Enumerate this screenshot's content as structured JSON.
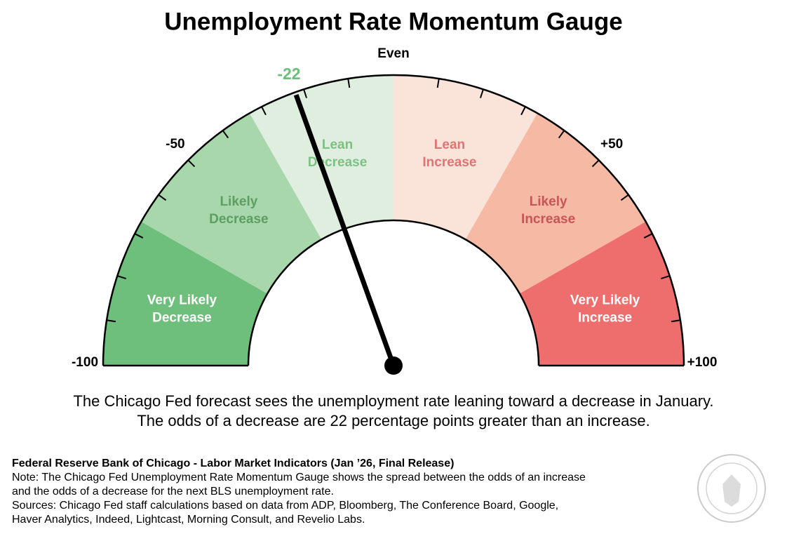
{
  "chart_data": {
    "type": "gauge",
    "title": "Unemployment Rate Momentum Gauge",
    "value": -22,
    "value_color": "#6cbf7a",
    "needle_color": "#000000",
    "range": [
      -100,
      100
    ],
    "bands": [
      {
        "name": [
          "Very Likely",
          "Decrease"
        ],
        "from": -100,
        "to": -67,
        "color": "#6dbf7b",
        "text_color": "#ffffff"
      },
      {
        "name": [
          "Likely",
          "Decrease"
        ],
        "from": -67,
        "to": -33,
        "color": "#a8d7ab",
        "text_color": "#5c9e63"
      },
      {
        "name": [
          "Lean",
          "Decrease"
        ],
        "from": -33,
        "to": 0,
        "color": "#e0eee0",
        "text_color": "#7cc184"
      },
      {
        "name": [
          "Lean",
          "Increase"
        ],
        "from": 0,
        "to": 33,
        "color": "#fae3d8",
        "text_color": "#e07474"
      },
      {
        "name": [
          "Likely",
          "Increase"
        ],
        "from": 33,
        "to": 67,
        "color": "#f6b9a3",
        "text_color": "#c65656"
      },
      {
        "name": [
          "Very Likely",
          "Increase"
        ],
        "from": 67,
        "to": 100,
        "color": "#ee6d6d",
        "text_color": "#ffffff"
      }
    ],
    "ticks": [
      -90,
      -80,
      -70,
      -60,
      -50,
      -40,
      -30,
      -20,
      -10,
      10,
      20,
      30,
      40,
      50,
      60,
      70,
      80,
      90
    ],
    "tick_labels": [
      -100,
      -50,
      {
        "value": 0,
        "label": "Even"
      },
      {
        "value": 50,
        "label": "+50"
      },
      {
        "value": 100,
        "label": "+100"
      }
    ],
    "caption": [
      "The Chicago Fed forecast sees the unemployment rate leaning toward a decrease in January.",
      "The odds of a decrease are 22 percentage points greater than an increase."
    ],
    "source_title": "Federal Reserve Bank of Chicago - Labor Market Indicators (Jan ’26, Final Release)",
    "notes": [
      "Note: The Chicago Fed Unemployment Rate Momentum Gauge shows the spread between the odds of an increase",
      "and the odds of a decrease for the next BLS unemployment rate.",
      "Sources: Chicago Fed staff calculations based on data from ADP, Bloomberg, The Conference Board, Google,",
      "Haver Analytics, Indeed, Lightcast, Morning Consult, and Revelio Labs."
    ]
  }
}
